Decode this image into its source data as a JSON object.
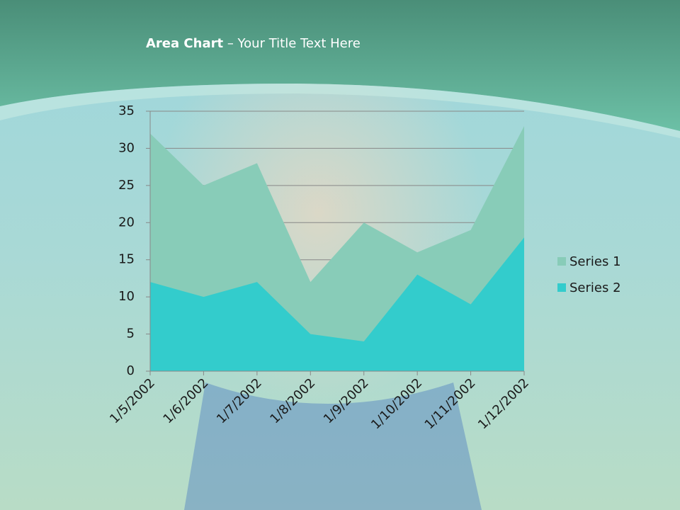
{
  "chart_data": {
    "type": "area",
    "title_parts": [
      "Area Chart",
      "– Your Title Text Here"
    ],
    "categories": [
      "1/5/2002",
      "1/6/2002",
      "1/7/2002",
      "1/8/2002",
      "1/9/2002",
      "1/10/2002",
      "1/11/2002",
      "1/12/2002"
    ],
    "series": [
      {
        "name": "Series 1",
        "color": "#88ccb8",
        "values": [
          32,
          25,
          28,
          12,
          20,
          16,
          19,
          33
        ]
      },
      {
        "name": "Series 2",
        "color": "#33cccc",
        "values": [
          12,
          10,
          12,
          5,
          4,
          13,
          9,
          18
        ]
      }
    ],
    "ylim": [
      0,
      35
    ],
    "yticks": [
      0,
      5,
      10,
      15,
      20,
      25,
      30,
      35
    ],
    "grid": true,
    "legend": "right"
  }
}
